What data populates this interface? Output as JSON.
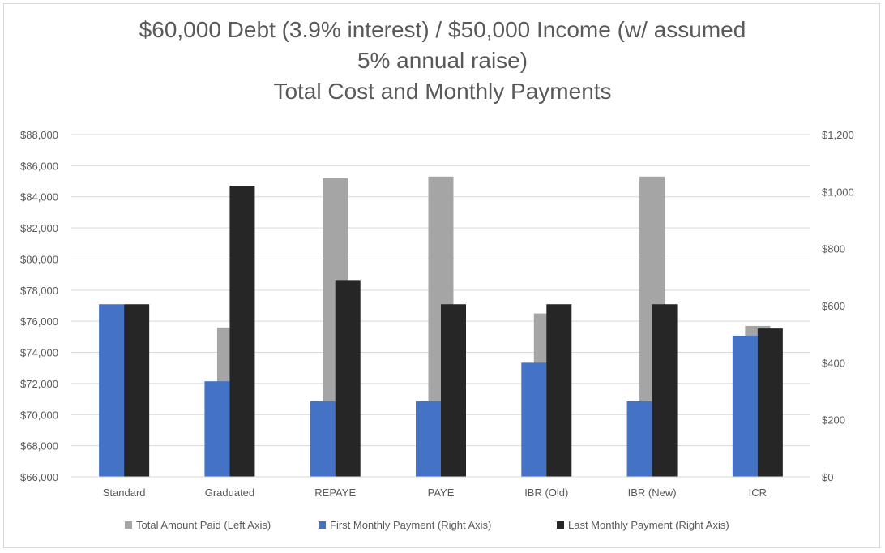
{
  "chart_data": {
    "type": "bar",
    "title_lines": [
      "$60,000 Debt (3.9% interest) / $50,000 Income (w/ assumed",
      "5% annual raise)",
      "Total Cost and Monthly Payments"
    ],
    "categories": [
      "Standard",
      "Graduated",
      "REPAYE",
      "PAYE",
      "IBR (Old)",
      "IBR (New)",
      "ICR"
    ],
    "left_axis": {
      "min": 66000,
      "max": 88000,
      "step": 2000,
      "tick_labels": [
        "$66,000",
        "$68,000",
        "$70,000",
        "$72,000",
        "$74,000",
        "$76,000",
        "$78,000",
        "$80,000",
        "$82,000",
        "$84,000",
        "$86,000",
        "$88,000"
      ]
    },
    "right_axis": {
      "min": 0,
      "max": 1200,
      "step": 200,
      "tick_labels": [
        "$0",
        "$200",
        "$400",
        "$600",
        "$800",
        "$1,000",
        "$1,200"
      ]
    },
    "series": [
      {
        "name": "Total Amount Paid (Left Axis)",
        "axis": "left",
        "color": "#a5a5a5",
        "values": [
          77000,
          75600,
          85200,
          85300,
          76500,
          85300,
          75700
        ]
      },
      {
        "name": "First Monthly Payment (Right Axis)",
        "axis": "right",
        "color": "#4472c4",
        "values": [
          605,
          335,
          265,
          265,
          400,
          265,
          495
        ]
      },
      {
        "name": "Last Monthly Payment (Right Axis)",
        "axis": "right",
        "color": "#262626",
        "values": [
          605,
          1020,
          690,
          605,
          605,
          605,
          520
        ]
      }
    ],
    "grid": true,
    "legend_position": "bottom"
  }
}
